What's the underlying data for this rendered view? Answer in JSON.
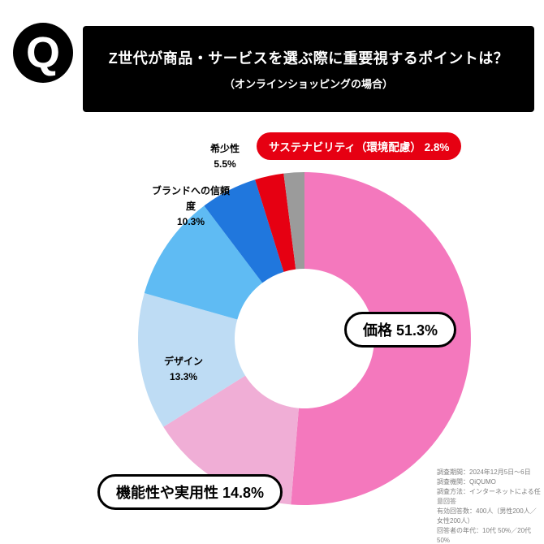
{
  "header": {
    "q_label": "Q",
    "title": "Z世代が商品・サービスを選ぶ際に重要視するポイントは？",
    "subtitle": "（オンラインショッピングの場合）"
  },
  "chart_data": {
    "type": "pie",
    "style": "donut",
    "start_angle_deg": 0,
    "direction": "clockwise",
    "inner_radius_ratio": 0.42,
    "unit": "%",
    "segments": [
      {
        "id": "price",
        "label": "価格",
        "value": 51.3,
        "color": "#f478bd"
      },
      {
        "id": "functionality",
        "label": "機能性や実用性",
        "value": 14.8,
        "color": "#f0aed6"
      },
      {
        "id": "design",
        "label": "デザイン",
        "value": 13.3,
        "color": "#bedcf4"
      },
      {
        "id": "brand-trust",
        "label": "ブランドへの信頼度",
        "value": 10.3,
        "color": "#5fbbf3"
      },
      {
        "id": "rarity",
        "label": "希少性",
        "value": 5.5,
        "color": "#2077dd"
      },
      {
        "id": "sustainability",
        "label": "サステナビリティ（環境配慮）",
        "value": 2.8,
        "color": "#e60012"
      },
      {
        "id": "other",
        "label": "",
        "value": 2.0,
        "color": "#9b9b9b"
      }
    ]
  },
  "callouts": {
    "sustainability": "サステナビリティ（環境配慮） 2.8%",
    "price": "価格 51.3%",
    "functionality": "機能性や実用性 14.8%"
  },
  "labels": {
    "rarity": {
      "line1": "希少性",
      "line2": "5.5%"
    },
    "brand_trust": {
      "line1": "ブランドへの信頼度",
      "line2": "10.3%"
    },
    "design": {
      "line1": "デザイン",
      "line2": "13.3%"
    }
  },
  "footnote": {
    "lines": [
      "調査期間：2024年12月5日～6日",
      "調査機関：QiQUMO",
      "調査方法：インターネットによる任意回答",
      "有効回答数：400人（男性200人／女性200人）",
      "回答者の年代：10代 50%／20代 50%"
    ]
  }
}
